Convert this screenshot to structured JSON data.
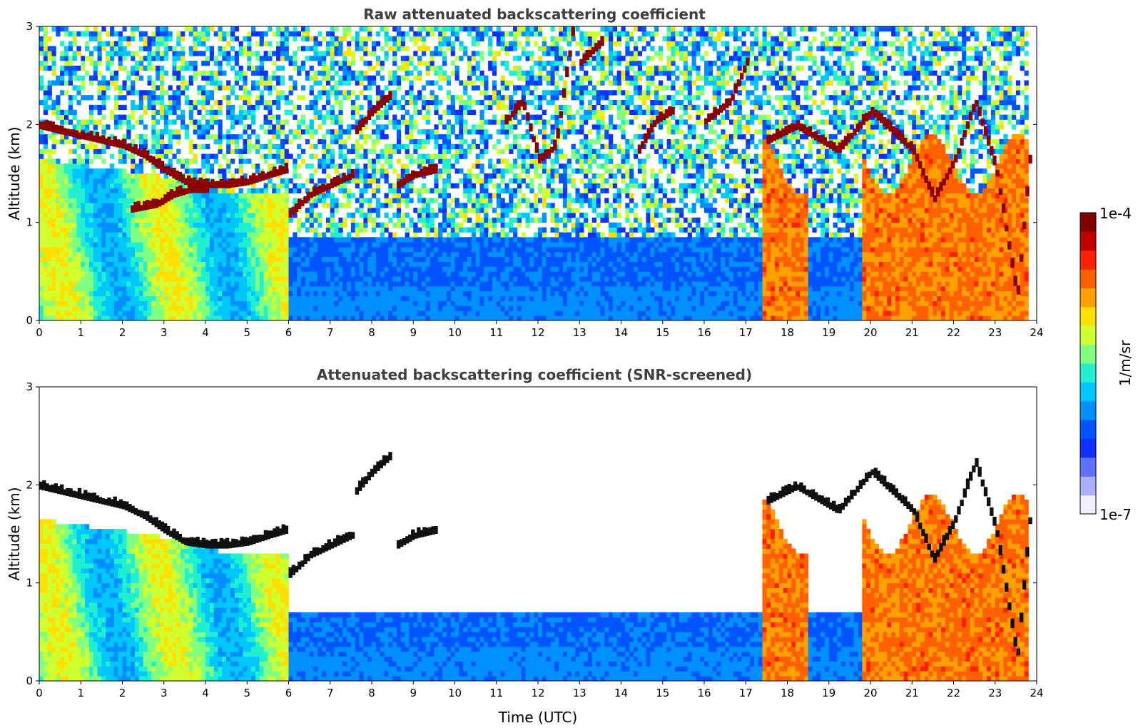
{
  "chart_data": [
    {
      "type": "heatmap",
      "title": "Raw attenuated backscattering coefficient",
      "xlabel": "",
      "ylabel": "Altitude (km)",
      "xlim": [
        0,
        24
      ],
      "ylim": [
        0,
        3
      ],
      "xticks": [
        "0",
        "1",
        "2",
        "3",
        "4",
        "5",
        "6",
        "7",
        "8",
        "9",
        "10",
        "11",
        "12",
        "13",
        "14",
        "15",
        "16",
        "17",
        "18",
        "19",
        "20",
        "21",
        "22",
        "23",
        "24"
      ],
      "yticks": [
        "0",
        "1",
        "2",
        "3"
      ],
      "colormap": "jet",
      "screened": false,
      "cloud_layers": [
        {
          "x": [
            0,
            0.5,
            1,
            1.5,
            2,
            2.5,
            3,
            3.5,
            4,
            4.5,
            5,
            5.5,
            5.9
          ],
          "y": [
            1.95,
            1.9,
            1.85,
            1.8,
            1.75,
            1.65,
            1.5,
            1.38,
            1.35,
            1.35,
            1.38,
            1.45,
            1.5
          ]
        },
        {
          "x": [
            2.2,
            2.8,
            3.2,
            3.6,
            4.0
          ],
          "y": [
            1.1,
            1.15,
            1.25,
            1.3,
            1.3
          ]
        },
        {
          "x": [
            6.0,
            6.5,
            7.0,
            7.5
          ],
          "y": [
            1.05,
            1.25,
            1.35,
            1.45
          ]
        },
        {
          "x": [
            7.6,
            8.0,
            8.4
          ],
          "y": [
            1.9,
            2.1,
            2.25
          ]
        },
        {
          "x": [
            8.6,
            9.0,
            9.5
          ],
          "y": [
            1.35,
            1.45,
            1.5
          ]
        },
        {
          "x": [
            11.2,
            11.6,
            12.0,
            12.4,
            12.8
          ],
          "y": [
            2.0,
            2.2,
            1.6,
            1.75,
            2.9
          ]
        },
        {
          "x": [
            13.0,
            13.5
          ],
          "y": [
            2.6,
            2.8
          ]
        },
        {
          "x": [
            14.4,
            14.8,
            15.2
          ],
          "y": [
            1.7,
            2.0,
            2.1
          ]
        },
        {
          "x": [
            16.0,
            16.6,
            17.0
          ],
          "y": [
            2.0,
            2.2,
            2.6
          ]
        },
        {
          "x": [
            17.5,
            18.2,
            18.8,
            19.2,
            19.6,
            20.0,
            20.5,
            21.0,
            21.5,
            22.0,
            22.5,
            23.0,
            23.5,
            23.8
          ],
          "y": [
            1.8,
            1.95,
            1.8,
            1.7,
            1.9,
            2.1,
            1.9,
            1.7,
            1.2,
            1.6,
            2.2,
            1.5,
            0.2,
            1.6
          ]
        }
      ]
    },
    {
      "type": "heatmap",
      "title": "Attenuated backscattering coefficient (SNR-screened)",
      "xlabel": "Time (UTC)",
      "ylabel": "Altitude (km)",
      "xlim": [
        0,
        24
      ],
      "ylim": [
        0,
        3
      ],
      "xticks": [
        "0",
        "1",
        "2",
        "3",
        "4",
        "5",
        "6",
        "7",
        "8",
        "9",
        "10",
        "11",
        "12",
        "13",
        "14",
        "15",
        "16",
        "17",
        "18",
        "19",
        "20",
        "21",
        "22",
        "23",
        "24"
      ],
      "yticks": [
        "0",
        "1",
        "2",
        "3"
      ],
      "colormap": "jet",
      "screened": true,
      "screened_signal_top_km": 0.7,
      "cloud_layers": [
        {
          "x": [
            0,
            0.5,
            1,
            1.5,
            2,
            2.5,
            3,
            3.5,
            4,
            4.5,
            5,
            5.5,
            5.9
          ],
          "y": [
            1.95,
            1.9,
            1.85,
            1.8,
            1.75,
            1.65,
            1.5,
            1.38,
            1.35,
            1.35,
            1.38,
            1.45,
            1.5
          ]
        },
        {
          "x": [
            6.0,
            6.5,
            7.0,
            7.5
          ],
          "y": [
            1.05,
            1.25,
            1.35,
            1.45
          ]
        },
        {
          "x": [
            7.6,
            8.0,
            8.4
          ],
          "y": [
            1.9,
            2.1,
            2.25
          ]
        },
        {
          "x": [
            8.6,
            9.0,
            9.5
          ],
          "y": [
            1.35,
            1.45,
            1.5
          ]
        },
        {
          "x": [
            17.5,
            18.2,
            18.8,
            19.2,
            19.6,
            20.0,
            20.5,
            21.0,
            21.5,
            22.0,
            22.5,
            23.0,
            23.5,
            23.8
          ],
          "y": [
            1.8,
            1.95,
            1.8,
            1.7,
            1.9,
            2.1,
            1.9,
            1.7,
            1.2,
            1.6,
            2.2,
            1.5,
            0.2,
            1.6
          ]
        }
      ]
    }
  ],
  "colorbar": {
    "max_label": "1e-4",
    "min_label": "1e-7",
    "unit_label": "1/m/sr",
    "colors": [
      "#eeeeff",
      "#aab0ff",
      "#6070ff",
      "#1030ff",
      "#0055ff",
      "#0090ff",
      "#00c8ff",
      "#20f0d0",
      "#80ff80",
      "#d0ff30",
      "#ffe000",
      "#ffa000",
      "#ff6000",
      "#ff2000",
      "#c00000",
      "#800000"
    ]
  }
}
